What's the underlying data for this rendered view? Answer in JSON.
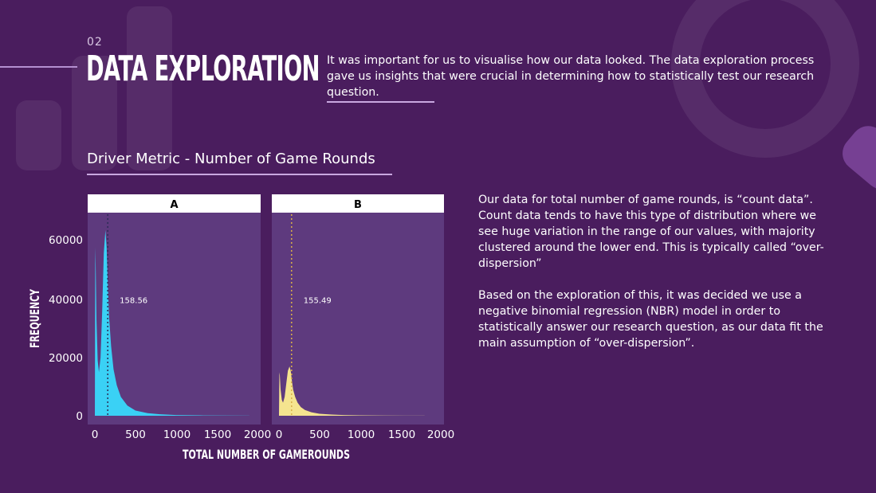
{
  "slide": {
    "number": "02",
    "title": "DATA EXPLORATION",
    "intro_main": "It was important for us to visualise how our data looked. The data exploration process gave us insights that were crucial in determining how to statistically test our ",
    "intro_link": "research question.",
    "subtitle": "Driver Metric - Number of Game Rounds",
    "paragraphs": [
      "Our data for total number of game rounds, is “count data”. Count data tends to have this type of distribution where we see huge variation in the range of our values, with majority clustered around the lower end. This is typically called “over-dispersion”",
      "Based on the exploration of this, it was decided we use a negative binomial regression (NBR) model in order to statistically answer our research question, as our data fit the main assumption of “over-dispersion”."
    ]
  },
  "colors": {
    "background": "#4a1d5e",
    "panel": "#5e3a7e",
    "group_a": "#3ad1f5",
    "group_b": "#f5e48f",
    "mean_line_a": "#2b2b55",
    "mean_line_b": "#d9b04a"
  },
  "chart_data": {
    "type": "area",
    "title": "",
    "xlabel": "TOTAL NUMBER OF GAMEROUNDS",
    "ylabel": "FREQUENCY",
    "xlim": [
      0,
      2000
    ],
    "ylim": [
      0,
      70000
    ],
    "x_ticks": [
      0,
      500,
      1000,
      1500,
      2000
    ],
    "x_tick_labels": [
      "0",
      "500",
      "1000",
      "1500",
      "2000"
    ],
    "y_ticks": [
      0,
      20000,
      40000,
      60000
    ],
    "y_tick_labels": [
      "0",
      "20000",
      "40000",
      "60000"
    ],
    "facets": [
      {
        "name": "A",
        "mean": 158.56,
        "mean_label": "158.56",
        "x": [
          0,
          5,
          10,
          20,
          35,
          50,
          70,
          90,
          110,
          130,
          145,
          160,
          175,
          200,
          230,
          270,
          320,
          400,
          500,
          650,
          800,
          1000,
          1300,
          1600,
          1900
        ],
        "values": [
          0,
          58000,
          52000,
          33000,
          19000,
          15000,
          20000,
          36000,
          56000,
          64000,
          58000,
          45000,
          34000,
          24000,
          16000,
          10500,
          6500,
          3500,
          1800,
          900,
          500,
          250,
          120,
          60,
          30
        ]
      },
      {
        "name": "B",
        "mean": 155.49,
        "mean_label": "155.49",
        "x": [
          0,
          5,
          10,
          20,
          35,
          50,
          70,
          90,
          110,
          130,
          145,
          160,
          175,
          200,
          230,
          270,
          320,
          400,
          500,
          650,
          800,
          1000,
          1300,
          1600,
          1800
        ],
        "values": [
          0,
          15000,
          14000,
          9000,
          5500,
          4500,
          6500,
          11000,
          15500,
          17000,
          15500,
          12000,
          9000,
          6500,
          4500,
          3000,
          2000,
          1200,
          700,
          400,
          250,
          150,
          80,
          40,
          20
        ]
      }
    ]
  }
}
